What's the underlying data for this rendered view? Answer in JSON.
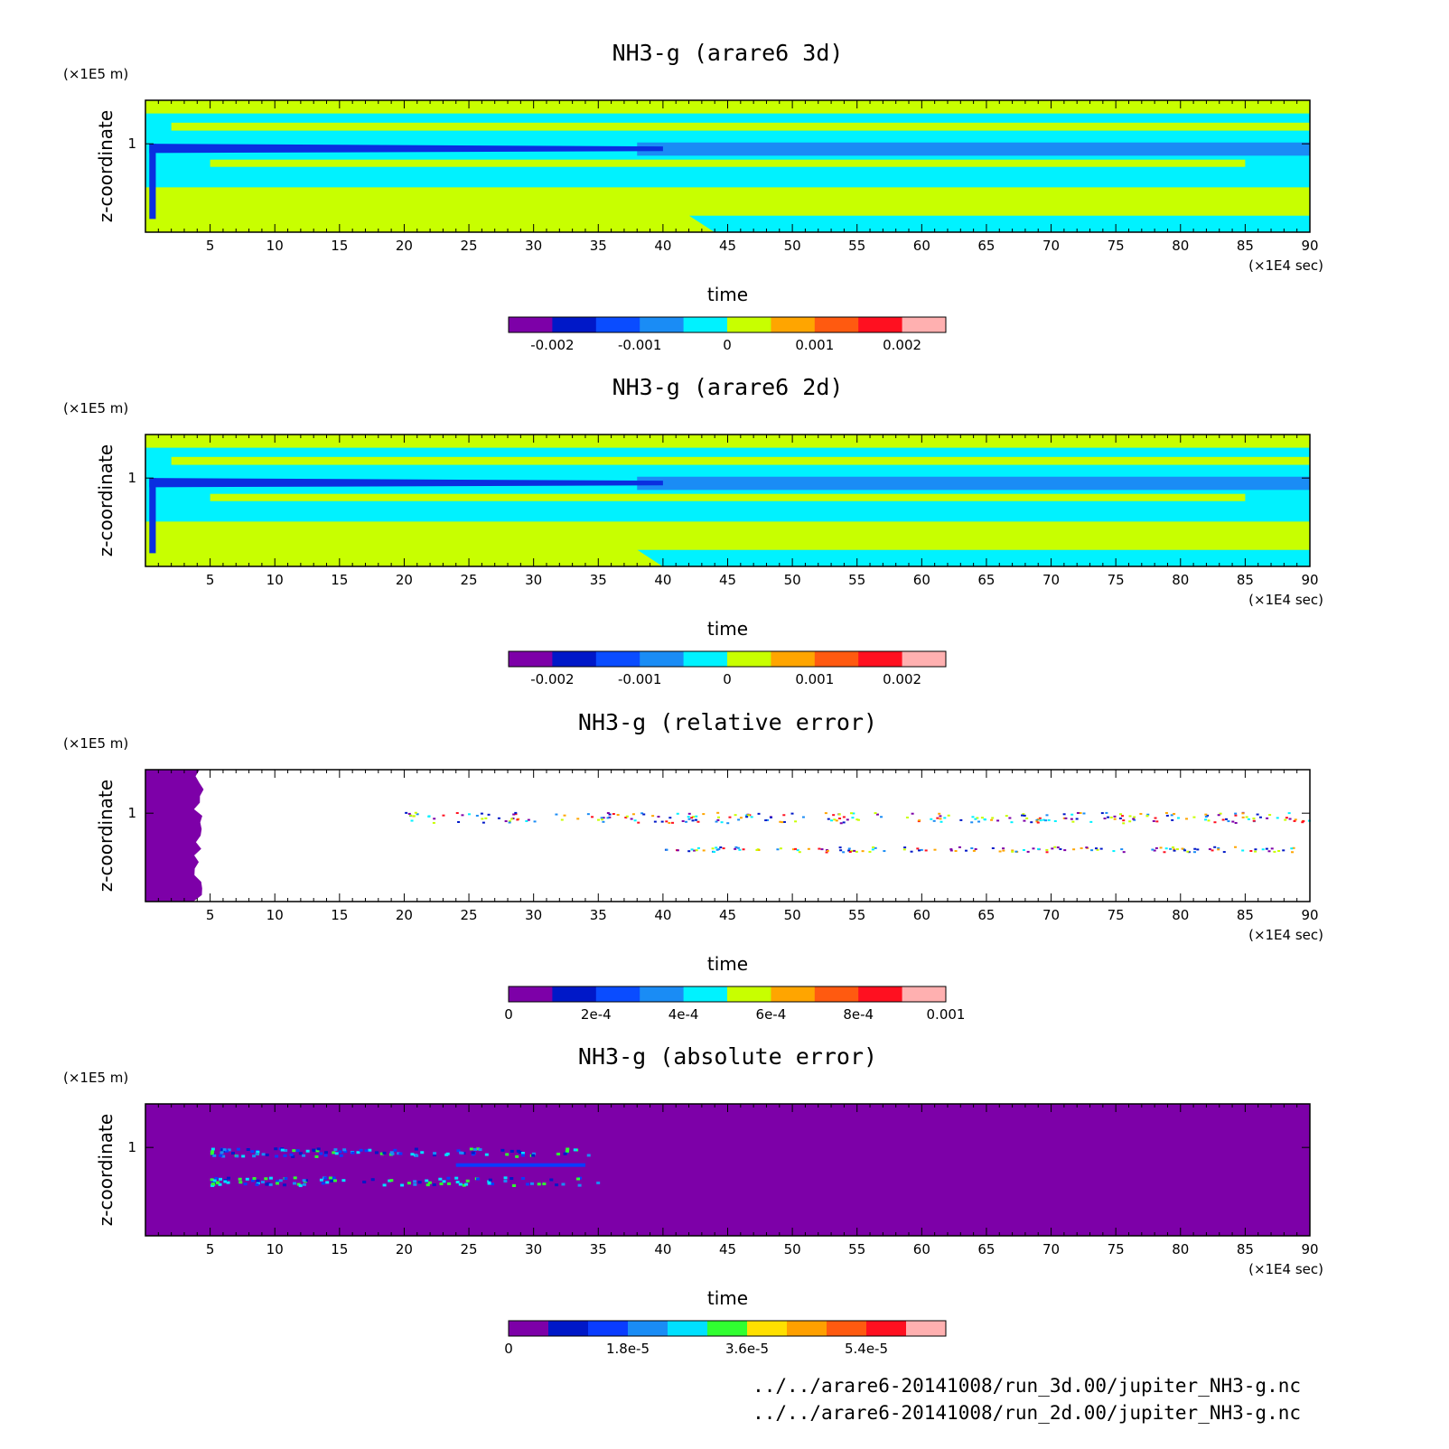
{
  "chart_data": [
    {
      "type": "heatmap",
      "title": "NH3-g (arare6 3d)",
      "xlabel": "time",
      "ylabel": "z-coordinate",
      "x_unit": "(×1E4 sec)",
      "y_unit": "(×1E5 m)",
      "xlim": [
        0,
        90
      ],
      "x_ticks": [
        5,
        10,
        15,
        20,
        25,
        30,
        35,
        40,
        45,
        50,
        55,
        60,
        65,
        70,
        75,
        80,
        85,
        90
      ],
      "y_ticks": [
        1
      ],
      "colorbar": {
        "colors": [
          "#7d00a8",
          "#0018c8",
          "#0a4cff",
          "#1a8cf5",
          "#00f2ff",
          "#c8ff00",
          "#ffa500",
          "#ff5a10",
          "#ff1020",
          "#ffb0b0"
        ],
        "tick_values": [
          -0.002,
          -0.001,
          0,
          0.001,
          0.002
        ],
        "tick_labels": [
          "-0.002",
          "-0.001",
          "0",
          "0.001",
          "0.002"
        ]
      }
    },
    {
      "type": "heatmap",
      "title": "NH3-g (arare6 2d)",
      "xlabel": "time",
      "ylabel": "z-coordinate",
      "x_unit": "(×1E4 sec)",
      "y_unit": "(×1E5 m)",
      "xlim": [
        0,
        90
      ],
      "x_ticks": [
        5,
        10,
        15,
        20,
        25,
        30,
        35,
        40,
        45,
        50,
        55,
        60,
        65,
        70,
        75,
        80,
        85,
        90
      ],
      "y_ticks": [
        1
      ],
      "colorbar": {
        "colors": [
          "#7d00a8",
          "#0018c8",
          "#0a4cff",
          "#1a8cf5",
          "#00f2ff",
          "#c8ff00",
          "#ffa500",
          "#ff5a10",
          "#ff1020",
          "#ffb0b0"
        ],
        "tick_values": [
          -0.002,
          -0.001,
          0,
          0.001,
          0.002
        ],
        "tick_labels": [
          "-0.002",
          "-0.001",
          "0",
          "0.001",
          "0.002"
        ]
      }
    },
    {
      "type": "heatmap",
      "title": "NH3-g (relative error)",
      "xlabel": "time",
      "ylabel": "z-coordinate",
      "x_unit": "(×1E4 sec)",
      "y_unit": "(×1E5 m)",
      "xlim": [
        0,
        90
      ],
      "x_ticks": [
        5,
        10,
        15,
        20,
        25,
        30,
        35,
        40,
        45,
        50,
        55,
        60,
        65,
        70,
        75,
        80,
        85,
        90
      ],
      "y_ticks": [
        1
      ],
      "colorbar": {
        "colors": [
          "#7d00a8",
          "#0018c8",
          "#0a4cff",
          "#1a8cf5",
          "#00f2ff",
          "#c8ff00",
          "#ffa500",
          "#ff5a10",
          "#ff1020",
          "#ffb0b0"
        ],
        "tick_values": [
          0,
          0.0002,
          0.0004,
          0.0006,
          0.0008,
          0.001
        ],
        "tick_labels": [
          "0",
          "2e-4",
          "4e-4",
          "6e-4",
          "8e-4",
          "0.001"
        ]
      }
    },
    {
      "type": "heatmap",
      "title": "NH3-g (absolute error)",
      "xlabel": "time",
      "ylabel": "z-coordinate",
      "x_unit": "(×1E4 sec)",
      "y_unit": "(×1E5 m)",
      "xlim": [
        0,
        90
      ],
      "x_ticks": [
        5,
        10,
        15,
        20,
        25,
        30,
        35,
        40,
        45,
        50,
        55,
        60,
        65,
        70,
        75,
        80,
        85,
        90
      ],
      "y_ticks": [
        1
      ],
      "colorbar": {
        "colors": [
          "#7d00a8",
          "#0018c8",
          "#0a3cff",
          "#1a8cf5",
          "#00e0ff",
          "#30ff30",
          "#ffe000",
          "#ffa000",
          "#ff5a10",
          "#ff1020",
          "#ffb0b0"
        ],
        "tick_values": [
          0,
          1.8e-05,
          3.6e-05,
          5.4e-05
        ],
        "tick_labels": [
          "0",
          "1.8e-5",
          "3.6e-5",
          "5.4e-5"
        ]
      }
    }
  ],
  "footer": {
    "file_3d": "../../arare6-20141008/run_3d.00/jupiter_NH3-g.nc",
    "file_2d": "../../arare6-20141008/run_2d.00/jupiter_NH3-g.nc"
  }
}
